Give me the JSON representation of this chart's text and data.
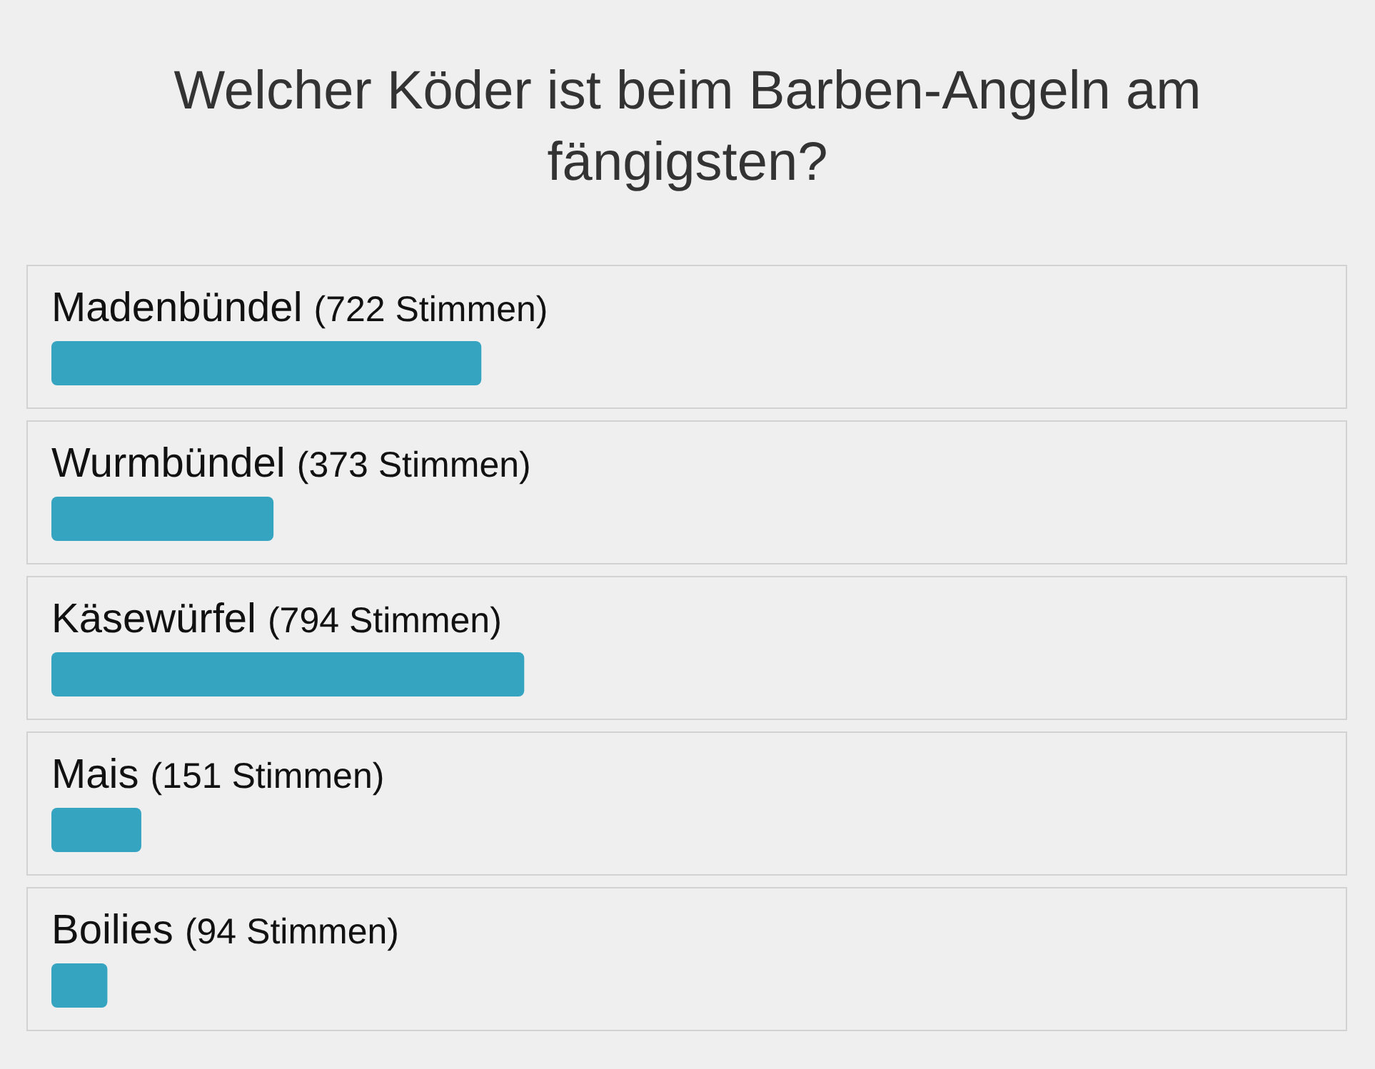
{
  "chart_data": {
    "type": "bar",
    "orientation": "horizontal",
    "title": "Welcher Köder ist beim Barben-Angeln am fängigsten?",
    "categories": [
      "Madenbündel",
      "Wurmbündel",
      "Käsewürfel",
      "Mais",
      "Boilies"
    ],
    "values": [
      722,
      373,
      794,
      151,
      94
    ],
    "value_labels": [
      "(722 Stimmen)",
      "(373 Stimmen)",
      "(794 Stimmen)",
      "(151 Stimmen)",
      "(94 Stimmen)"
    ],
    "color": "#35a4c0"
  }
}
